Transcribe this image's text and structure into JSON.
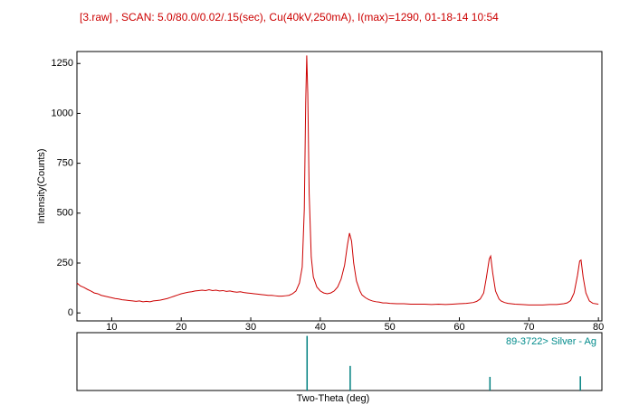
{
  "chart_data": [
    {
      "type": "line",
      "title": "[3.raw] , SCAN: 5.0/80.0/0.02/.15(sec), Cu(40kV,250mA), I(max)=1290, 01-18-14 10:54",
      "y_label": "Intensity(Counts)",
      "xlim": [
        5,
        80.5
      ],
      "ylim": [
        -40,
        1310
      ],
      "xticks": [
        10,
        20,
        30,
        40,
        50,
        60,
        70,
        80
      ],
      "yticks": [
        0,
        250,
        500,
        750,
        1000,
        1250
      ],
      "x": [
        5,
        5.5,
        6,
        6.5,
        7,
        7.5,
        8,
        8.5,
        9,
        9.5,
        10,
        10.5,
        11,
        11.5,
        12,
        12.5,
        13,
        13.5,
        14,
        14.5,
        15,
        15.5,
        16,
        16.5,
        17,
        17.5,
        18,
        18.5,
        19,
        19.5,
        20,
        20.5,
        21,
        21.5,
        22,
        22.5,
        23,
        23.5,
        24,
        24.5,
        25,
        25.5,
        26,
        26.5,
        27,
        27.5,
        28,
        28.5,
        29,
        29.5,
        30,
        30.5,
        31,
        31.5,
        32,
        32.5,
        33,
        33.5,
        34,
        34.5,
        35,
        35.5,
        36,
        36.5,
        37,
        37.4,
        37.7,
        37.9,
        38.05,
        38.2,
        38.4,
        38.7,
        39,
        39.5,
        40,
        40.5,
        41,
        41.5,
        42,
        42.5,
        43,
        43.5,
        43.9,
        44.2,
        44.5,
        44.8,
        45.2,
        45.7,
        46,
        46.5,
        47,
        47.5,
        48,
        48.5,
        49,
        49.5,
        50,
        51,
        52,
        53,
        54,
        55,
        56,
        57,
        58,
        59,
        60,
        61,
        62,
        62.5,
        63,
        63.5,
        63.9,
        64.3,
        64.5,
        64.8,
        65.2,
        65.7,
        66,
        66.5,
        67,
        68,
        69,
        70,
        71,
        72,
        73,
        74,
        75,
        75.5,
        76,
        76.5,
        77,
        77.3,
        77.5,
        77.8,
        78.2,
        78.7,
        79.2,
        80
      ],
      "series": [
        {
          "name": "3.raw",
          "color": "#cc0000",
          "values": [
            150,
            135,
            128,
            118,
            110,
            100,
            96,
            88,
            84,
            80,
            76,
            72,
            70,
            66,
            64,
            62,
            60,
            58,
            60,
            56,
            58,
            56,
            60,
            62,
            64,
            68,
            72,
            78,
            84,
            90,
            96,
            100,
            104,
            106,
            110,
            112,
            114,
            112,
            116,
            112,
            114,
            110,
            112,
            108,
            110,
            106,
            104,
            106,
            102,
            100,
            98,
            96,
            94,
            92,
            90,
            88,
            88,
            86,
            84,
            84,
            86,
            88,
            96,
            110,
            150,
            230,
            520,
            1050,
            1290,
            1100,
            600,
            280,
            180,
            130,
            110,
            100,
            96,
            100,
            110,
            130,
            170,
            240,
            340,
            400,
            360,
            250,
            160,
            110,
            90,
            76,
            66,
            60,
            56,
            54,
            50,
            50,
            48,
            46,
            46,
            44,
            44,
            44,
            42,
            44,
            42,
            44,
            46,
            48,
            52,
            58,
            70,
            100,
            180,
            270,
            285,
            200,
            110,
            70,
            60,
            52,
            48,
            44,
            42,
            40,
            40,
            40,
            42,
            42,
            46,
            50,
            62,
            100,
            190,
            260,
            265,
            180,
            100,
            60,
            48,
            44
          ]
        }
      ]
    },
    {
      "type": "stick",
      "x_label": "Two-Theta (deg)",
      "xlim": [
        5,
        80.5
      ],
      "ylim": [
        0,
        106
      ],
      "x": [
        38.1,
        44.3,
        64.4,
        77.4
      ],
      "series": [
        {
          "name": "89-3722> Silver - Ag",
          "color": "#008080",
          "values": [
            100,
            45,
            25,
            26
          ]
        }
      ]
    }
  ]
}
